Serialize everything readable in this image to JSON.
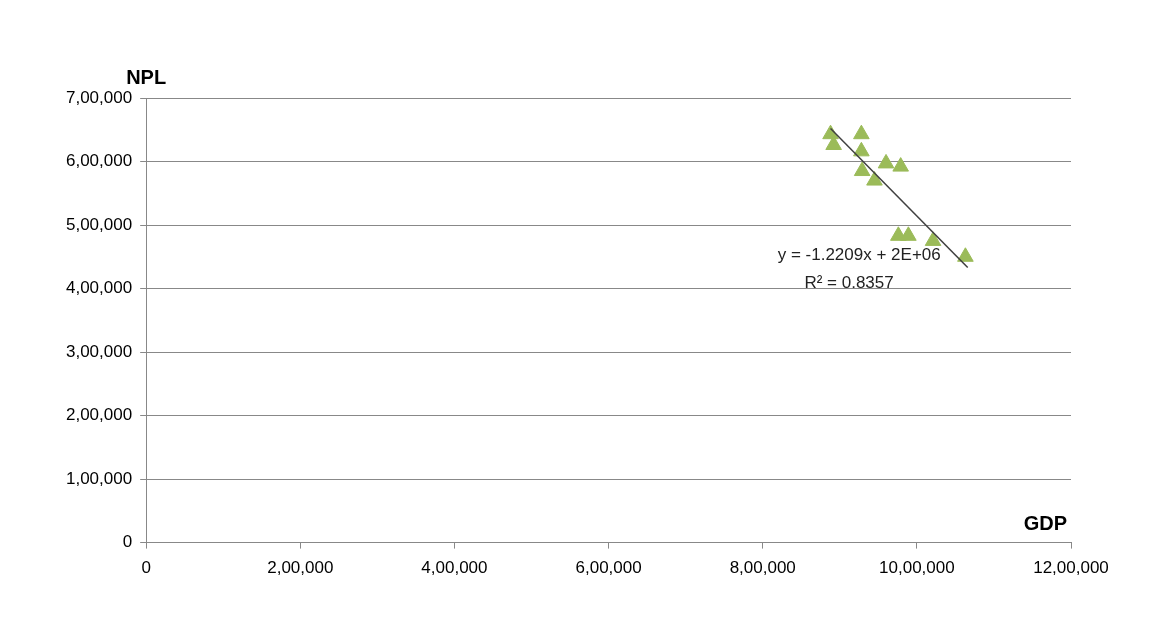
{
  "chart_data": {
    "type": "scatter",
    "xlabel": "GDP",
    "ylabel": "NPL",
    "series": [
      {
        "type": "scatter",
        "color": "#9bbb59",
        "marker": "triangle",
        "x": [
          888000,
          892000,
          928000,
          928000,
          929000,
          945000,
          960000,
          979000,
          976000,
          989000,
          1021000,
          1063000
        ],
        "values": [
          643000,
          626000,
          643000,
          616000,
          585000,
          570000,
          597000,
          592000,
          483000,
          483000,
          475000,
          450000
        ]
      },
      {
        "type": "line",
        "color": "#404040",
        "marker": "none",
        "x": [
          888000,
          1066000
        ],
        "values": [
          652000,
          433000
        ]
      }
    ],
    "xlim": [
      0,
      1200000
    ],
    "ylim": [
      0,
      700000
    ],
    "xticks": [
      0,
      {
        "value": 200000,
        "label": "2,00,000"
      },
      {
        "value": 400000,
        "label": "4,00,000"
      },
      {
        "value": 600000,
        "label": "6,00,000"
      },
      {
        "value": 800000,
        "label": "8,00,000"
      },
      {
        "value": 1000000,
        "label": "10,00,000"
      },
      {
        "value": 1200000,
        "label": "12,00,000"
      }
    ],
    "yticks": [
      0,
      {
        "value": 100000,
        "label": "1,00,000"
      },
      {
        "value": 200000,
        "label": "2,00,000"
      },
      {
        "value": 300000,
        "label": "3,00,000"
      },
      {
        "value": 400000,
        "label": "4,00,000"
      },
      {
        "value": 500000,
        "label": "5,00,000"
      },
      {
        "value": 600000,
        "label": "6,00,000"
      },
      {
        "value": 700000,
        "label": "7,00,000"
      }
    ],
    "grid": "y",
    "legend": false,
    "annotations": [
      "y = -1.2209x + 2E+06",
      "R² = 0.8357"
    ]
  }
}
